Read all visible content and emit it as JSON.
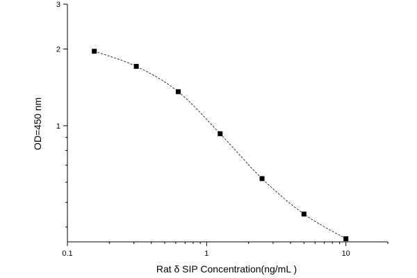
{
  "chart_data": {
    "type": "scatter",
    "xlabel": "Rat  δ  SIP Concentration(ng/mL )",
    "ylabel": "OD=450 nm",
    "x_scale": "log",
    "y_scale": "log",
    "xlim": [
      0.1,
      20
    ],
    "ylim": [
      0.35,
      3
    ],
    "x_ticks": [
      0.1,
      1,
      10
    ],
    "x_tick_labels": [
      "0.1",
      "1",
      "10"
    ],
    "y_ticks": [
      1,
      2,
      3
    ],
    "y_tick_labels": [
      "1",
      "2",
      "3"
    ],
    "grid": false,
    "legend": "none",
    "series": [
      {
        "x": [
          0.156,
          0.3125,
          0.625,
          1.25,
          2.5,
          5,
          10
        ],
        "y": [
          1.96,
          1.71,
          1.36,
          0.93,
          0.62,
          0.45,
          0.36
        ]
      }
    ]
  }
}
